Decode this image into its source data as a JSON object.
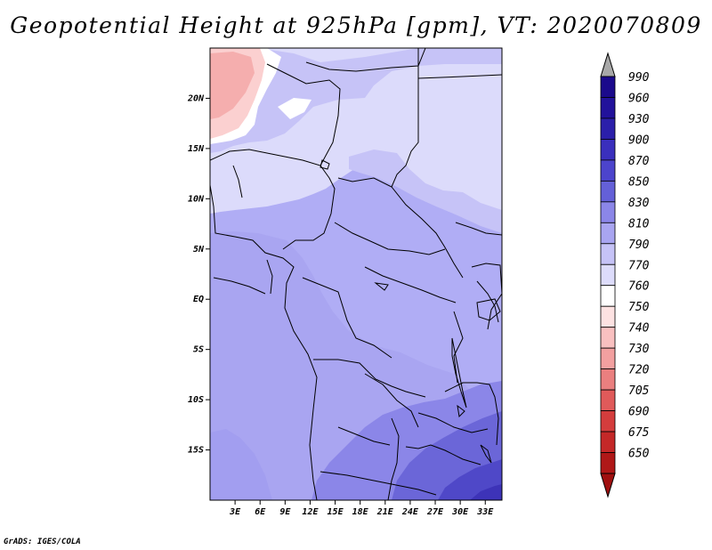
{
  "title": "Geopotential Height at 925hPa [gpm], VT: 2020070809",
  "credit": "GrADS: IGES/COLA",
  "map": {
    "lat_labels": [
      "20N",
      "15N",
      "10N",
      "5N",
      "EQ",
      "5S",
      "10S",
      "15S"
    ],
    "lat_values": [
      20,
      15,
      10,
      5,
      0,
      -5,
      -10,
      -15
    ],
    "lon_labels": [
      "3E",
      "6E",
      "9E",
      "12E",
      "15E",
      "18E",
      "21E",
      "24E",
      "27E",
      "30E",
      "33E"
    ],
    "lon_values": [
      3,
      6,
      9,
      12,
      15,
      18,
      21,
      24,
      27,
      30,
      33
    ],
    "extent": {
      "lon_min": 0,
      "lon_max": 35,
      "lat_min": -20,
      "lat_max": 25
    },
    "background_color": "#b0adf5"
  },
  "colorbar": {
    "levels": [
      {
        "label": "990",
        "color": "#1b0a8c"
      },
      {
        "label": "960",
        "color": "#22129b"
      },
      {
        "label": "930",
        "color": "#2b1faa"
      },
      {
        "label": "900",
        "color": "#3a2fbd"
      },
      {
        "label": "870",
        "color": "#4c44cc"
      },
      {
        "label": "850",
        "color": "#6460d8"
      },
      {
        "label": "830",
        "color": "#8b86e8"
      },
      {
        "label": "810",
        "color": "#a9a5f1"
      },
      {
        "label": "790",
        "color": "#c6c3f7"
      },
      {
        "label": "770",
        "color": "#dddcfb"
      },
      {
        "label": "760",
        "color": "#ffffff"
      },
      {
        "label": "750",
        "color": "#fde2e2"
      },
      {
        "label": "740",
        "color": "#f9c0c0"
      },
      {
        "label": "730",
        "color": "#f3a0a0"
      },
      {
        "label": "720",
        "color": "#ea7f7f"
      },
      {
        "label": "705",
        "color": "#e05a5a"
      },
      {
        "label": "690",
        "color": "#d43d3d"
      },
      {
        "label": "675",
        "color": "#c42828"
      },
      {
        "label": "650",
        "color": "#b01818"
      }
    ],
    "over_color": "#a8a8a8",
    "under_color": "#a01010"
  }
}
